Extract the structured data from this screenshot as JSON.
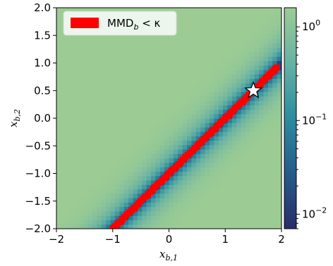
{
  "chart_data": {
    "type": "heatmap",
    "title": "",
    "xlabel": "x_{b,1}",
    "ylabel": "x_{b,2}",
    "xlim": [
      -2.0,
      2.0
    ],
    "ylim": [
      -2.0,
      2.0
    ],
    "xticks": [
      -2,
      -1,
      0,
      1,
      2
    ],
    "xtick_labels": [
      "−2",
      "−1",
      "0",
      "1",
      "2"
    ],
    "yticks": [
      -2.0,
      -1.5,
      -1.0,
      -0.5,
      0.0,
      0.5,
      1.0,
      1.5,
      2.0
    ],
    "ytick_labels": [
      "−2.0",
      "−1.5",
      "−1.0",
      "−0.5",
      "0.0",
      "0.5",
      "1.0",
      "1.5",
      "2.0"
    ],
    "heatmap": {
      "grid_size": 50,
      "description_of_structure": "value increases with distance from the diagonal x2 = x1 - 1",
      "min_value": 0.007,
      "max_value": 1.6
    },
    "colorbar": {
      "scale": "log",
      "range": [
        0.007,
        1.6
      ],
      "ticks": [
        0.01,
        0.1,
        1
      ],
      "tick_labels": [
        "10",
        "10",
        "10"
      ],
      "tick_exponents": [
        "−2",
        "−1",
        "0"
      ],
      "colors": [
        "#2a2d6b",
        "#255b8a",
        "#2c8ca0",
        "#67b2a4",
        "#9ccc94"
      ]
    },
    "series": [
      {
        "name": "MMD_b < κ",
        "type": "region",
        "color": "#ff0000",
        "x": [
          -1.0,
          -0.75,
          -0.5,
          -0.25,
          0.0,
          0.25,
          0.5,
          0.75,
          1.0,
          1.25,
          1.5,
          1.75,
          1.95
        ],
        "y": [
          -2.0,
          -1.75,
          -1.5,
          -1.25,
          -1.0,
          -0.75,
          -0.5,
          -0.25,
          0.0,
          0.25,
          0.5,
          0.75,
          0.95
        ]
      },
      {
        "name": "",
        "type": "marker",
        "marker": "star",
        "x": [
          1.5
        ],
        "y": [
          0.5
        ]
      }
    ],
    "legend": {
      "placement": "top-left",
      "label_main": "MMD",
      "label_sub": "b",
      "label_rest": " < κ"
    }
  }
}
